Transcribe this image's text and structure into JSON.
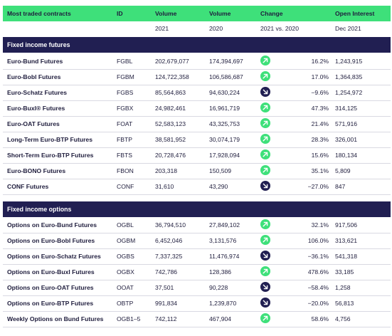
{
  "header": {
    "col_name": "Most traded contracts",
    "col_id": "ID",
    "col_v21": "Volume",
    "col_v20": "Volume",
    "col_change": "Change",
    "col_oi": "Open Interest",
    "sub_v21": "2021",
    "sub_v20": "2020",
    "sub_change": "2021 vs. 2020",
    "sub_oi": "Dec 2021"
  },
  "sections": [
    {
      "title": "Fixed income futures",
      "rows": [
        {
          "name": "Euro-Bund Futures",
          "id": "FGBL",
          "v21": "202,679,077",
          "v20": "174,394,697",
          "dir": "up",
          "change": "16.2%",
          "oi": "1,243,915"
        },
        {
          "name": "Euro-Bobl Futures",
          "id": "FGBM",
          "v21": "124,722,358",
          "v20": "106,586,687",
          "dir": "up",
          "change": "17.0%",
          "oi": "1,364,835"
        },
        {
          "name": "Euro-Schatz Futures",
          "id": "FGBS",
          "v21": "85,564,863",
          "v20": "94,630,224",
          "dir": "down",
          "change": "−9.6%",
          "oi": "1,254,972"
        },
        {
          "name": "Euro-Buxl® Futures",
          "id": "FGBX",
          "v21": "24,982,461",
          "v20": "16,961,719",
          "dir": "up",
          "change": "47.3%",
          "oi": "314,125"
        },
        {
          "name": "Euro-OAT Futures",
          "id": "FOAT",
          "v21": "52,583,123",
          "v20": "43,325,753",
          "dir": "up",
          "change": "21.4%",
          "oi": "571,916"
        },
        {
          "name": "Long-Term Euro-BTP Futures",
          "id": "FBTP",
          "v21": "38,581,952",
          "v20": "30,074,179",
          "dir": "up",
          "change": "28.3%",
          "oi": "326,001"
        },
        {
          "name": "Short-Term Euro-BTP Futures",
          "id": "FBTS",
          "v21": "20,728,476",
          "v20": "17,928,094",
          "dir": "up",
          "change": "15.6%",
          "oi": "180,134"
        },
        {
          "name": "Euro-BONO Futures",
          "id": "FBON",
          "v21": "203,318",
          "v20": "150,509",
          "dir": "up",
          "change": "35.1%",
          "oi": "5,809"
        },
        {
          "name": "CONF Futures",
          "id": "CONF",
          "v21": "31,610",
          "v20": "43,290",
          "dir": "down",
          "change": "−27.0%",
          "oi": "847"
        }
      ]
    },
    {
      "title": "Fixed income options",
      "rows": [
        {
          "name": "Options on Euro-Bund Futures",
          "id": "OGBL",
          "v21": "36,794,510",
          "v20": "27,849,102",
          "dir": "up",
          "change": "32.1%",
          "oi": "917,506"
        },
        {
          "name": "Options on Euro-Bobl Futures",
          "id": "OGBM",
          "v21": "6,452,046",
          "v20": "3,131,576",
          "dir": "up",
          "change": "106.0%",
          "oi": "313,621"
        },
        {
          "name": "Options on Euro-Schatz Futures",
          "id": "OGBS",
          "v21": "7,337,325",
          "v20": "11,476,974",
          "dir": "down",
          "change": "−36.1%",
          "oi": "541,318"
        },
        {
          "name": "Options on Euro-Buxl Futures",
          "id": "OGBX",
          "v21": "742,786",
          "v20": "128,386",
          "dir": "up",
          "change": "478.6%",
          "oi": "33,185"
        },
        {
          "name": "Options on Euro-OAT Futures",
          "id": "OOAT",
          "v21": "37,501",
          "v20": "90,228",
          "dir": "down",
          "change": "−58.4%",
          "oi": "1,258"
        },
        {
          "name": "Options on Euro-BTP Futures",
          "id": "OBTP",
          "v21": "991,834",
          "v20": "1,239,870",
          "dir": "down",
          "change": "−20.0%",
          "oi": "56,813"
        },
        {
          "name": "Weekly Options on Bund Futures",
          "id": "OGB1–5",
          "v21": "742,112",
          "v20": "467,904",
          "dir": "up",
          "change": "58.6%",
          "oi": "4,756"
        }
      ]
    }
  ]
}
